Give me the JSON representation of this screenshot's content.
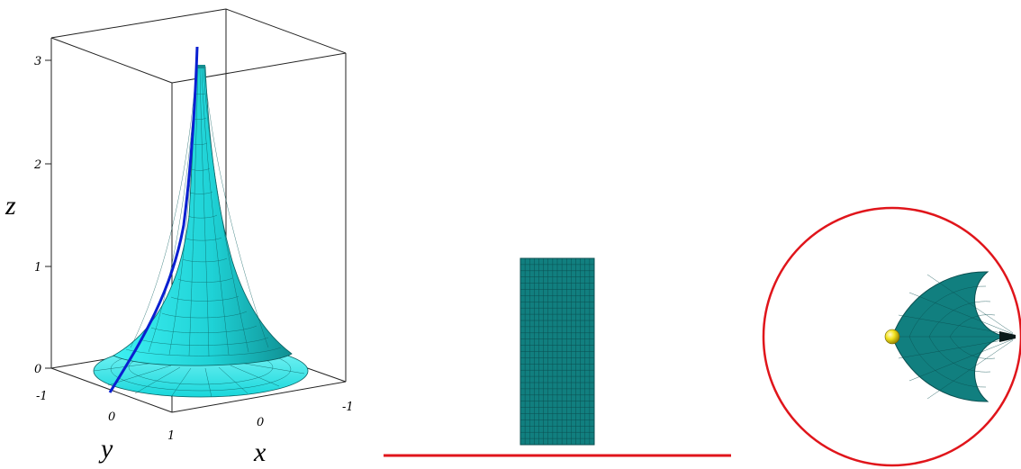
{
  "panel_3d": {
    "axis_labels": {
      "z": "z",
      "y": "y",
      "x": "x"
    },
    "z_ticks": [
      "0",
      "1",
      "2",
      "3"
    ],
    "y_ticks": [
      "-1",
      "0",
      "1"
    ],
    "x_ticks": [
      "0",
      "-1"
    ]
  },
  "colors": {
    "surface": "#1fe3e6",
    "surface_dark": "#0e8a8c",
    "mesh_line": "#0b5f60",
    "curve": "#0a1fd0",
    "box_line": "#222222",
    "model_fill": "#117f7f",
    "boundary": "#e0151b",
    "point": "#f3e21f"
  },
  "icons": {
    "marked_point": "yellow-sphere-icon"
  }
}
